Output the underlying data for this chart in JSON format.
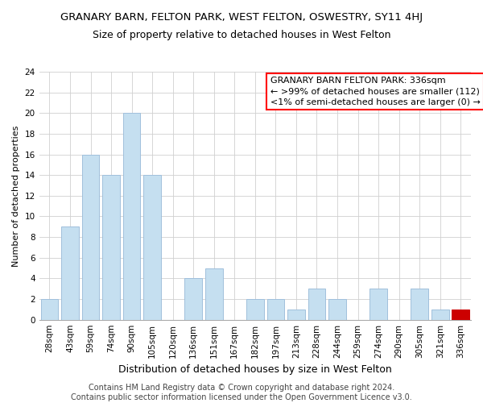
{
  "title": "GRANARY BARN, FELTON PARK, WEST FELTON, OSWESTRY, SY11 4HJ",
  "subtitle": "Size of property relative to detached houses in West Felton",
  "xlabel": "Distribution of detached houses by size in West Felton",
  "ylabel": "Number of detached properties",
  "footnote": "Contains HM Land Registry data © Crown copyright and database right 2024.\nContains public sector information licensed under the Open Government Licence v3.0.",
  "categories": [
    "28sqm",
    "43sqm",
    "59sqm",
    "74sqm",
    "90sqm",
    "105sqm",
    "120sqm",
    "136sqm",
    "151sqm",
    "167sqm",
    "182sqm",
    "197sqm",
    "213sqm",
    "228sqm",
    "244sqm",
    "259sqm",
    "274sqm",
    "290sqm",
    "305sqm",
    "321sqm",
    "336sqm"
  ],
  "values": [
    2,
    9,
    16,
    14,
    20,
    14,
    0,
    4,
    5,
    0,
    2,
    2,
    1,
    3,
    2,
    0,
    3,
    0,
    3,
    1,
    1
  ],
  "highlight_index": 20,
  "bar_color": "#c5dff0",
  "bar_edge_color": "#a0c0dc",
  "highlight_color": "#cc0000",
  "legend_title": "GRANARY BARN FELTON PARK: 336sqm",
  "legend_line1": "← >99% of detached houses are smaller (112)",
  "legend_line2": "<1% of semi-detached houses are larger (0) →",
  "ylim": [
    0,
    24
  ],
  "yticks": [
    0,
    2,
    4,
    6,
    8,
    10,
    12,
    14,
    16,
    18,
    20,
    22,
    24
  ],
  "background_color": "#ffffff",
  "grid_color": "#d0d0d0",
  "title_fontsize": 9.5,
  "subtitle_fontsize": 9,
  "xlabel_fontsize": 9,
  "ylabel_fontsize": 8,
  "tick_fontsize": 7.5,
  "footnote_fontsize": 7,
  "legend_fontsize": 8
}
